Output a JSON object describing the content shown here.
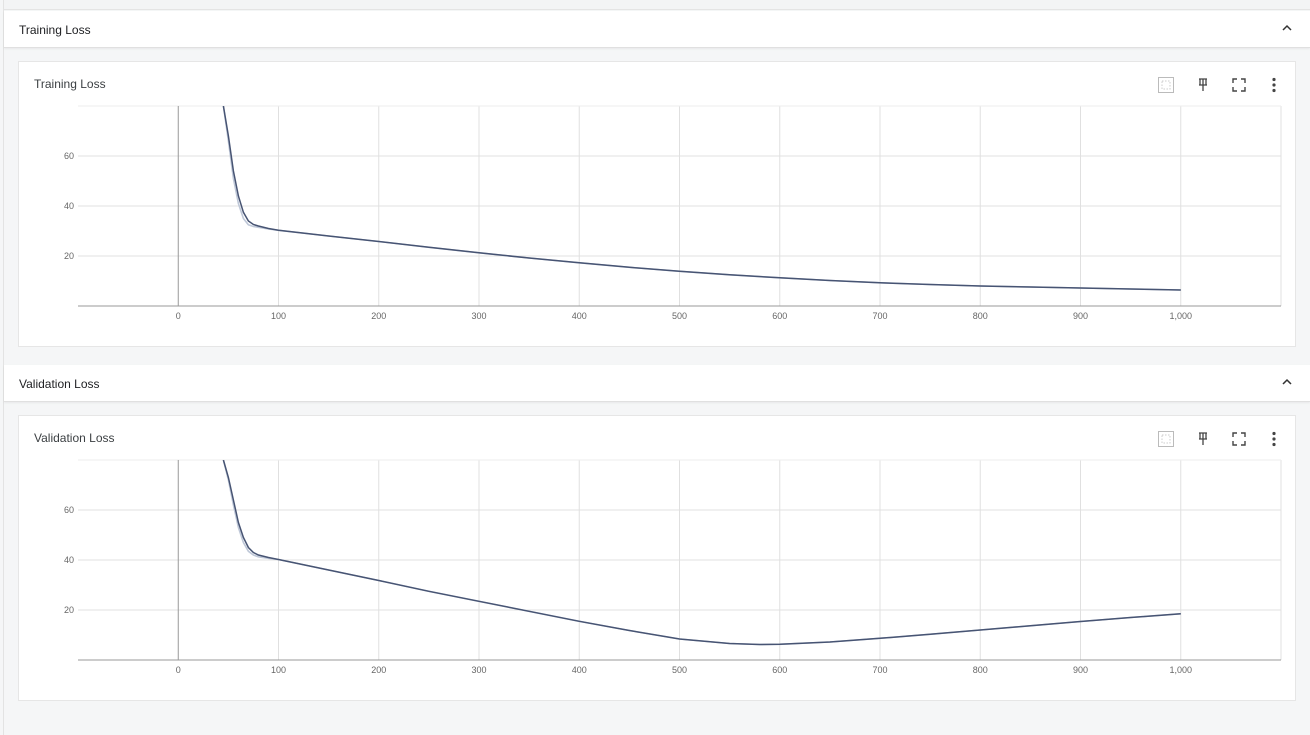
{
  "sections": [
    {
      "header_title": "Training Loss",
      "card_title": "Training Loss",
      "toolbar": [
        "fit-domain-icon",
        "pin-icon",
        "fullscreen-icon",
        "more-vert-icon"
      ],
      "chart_data": {
        "type": "line",
        "title": "Training Loss",
        "xlabel": "",
        "ylabel": "",
        "xlim": [
          -100,
          1100
        ],
        "ylim": [
          0,
          80
        ],
        "x_ticks": [
          0,
          100,
          200,
          300,
          400,
          500,
          600,
          700,
          800,
          900,
          1000
        ],
        "x_tick_labels": [
          "0",
          "100",
          "200",
          "300",
          "400",
          "500",
          "600",
          "700",
          "800",
          "900",
          "1,000"
        ],
        "y_ticks": [
          20,
          40,
          60
        ],
        "y_tick_labels": [
          "20",
          "40",
          "60"
        ],
        "grid": true,
        "series": [
          {
            "color": "#bfc8d8",
            "x": [
              45,
              50,
              55,
              60,
              65,
              70,
              75,
              80,
              90,
              100,
              150,
              200,
              250,
              300,
              350,
              400,
              450,
              500,
              550,
              600,
              650,
              700,
              750,
              800,
              850,
              900,
              950,
              1000
            ],
            "y": [
              80,
              66,
              51,
              41,
              35,
              32.5,
              31.8,
              31.5,
              30.8,
              30.3,
              28,
              25.8,
              23.5,
              21.3,
              19.2,
              17.3,
              15.5,
              13.9,
              12.5,
              11.3,
              10.2,
              9.3,
              8.6,
              8,
              7.6,
              7.2,
              6.8,
              6.4
            ]
          },
          {
            "color": "#475473",
            "x": [
              45,
              50,
              55,
              60,
              65,
              70,
              75,
              80,
              90,
              100,
              150,
              200,
              250,
              300,
              350,
              400,
              450,
              500,
              550,
              600,
              650,
              700,
              750,
              800,
              850,
              900,
              950,
              1000
            ],
            "y": [
              80,
              68,
              54,
              44,
              37.5,
              34,
              32.6,
              32,
              31,
              30.3,
              28,
              25.8,
              23.5,
              21.3,
              19.2,
              17.3,
              15.5,
              13.9,
              12.5,
              11.3,
              10.2,
              9.3,
              8.6,
              8,
              7.6,
              7.2,
              6.8,
              6.4
            ]
          }
        ]
      }
    },
    {
      "header_title": "Validation Loss",
      "card_title": "Validation Loss",
      "toolbar": [
        "fit-domain-icon",
        "pin-icon",
        "fullscreen-icon",
        "more-vert-icon"
      ],
      "chart_data": {
        "type": "line",
        "title": "Validation Loss",
        "xlabel": "",
        "ylabel": "",
        "xlim": [
          -100,
          1100
        ],
        "ylim": [
          0,
          80
        ],
        "x_ticks": [
          0,
          100,
          200,
          300,
          400,
          500,
          600,
          700,
          800,
          900,
          1000
        ],
        "x_tick_labels": [
          "0",
          "100",
          "200",
          "300",
          "400",
          "500",
          "600",
          "700",
          "800",
          "900",
          "1,000"
        ],
        "y_ticks": [
          20,
          40,
          60
        ],
        "y_tick_labels": [
          "20",
          "40",
          "60"
        ],
        "grid": true,
        "series": [
          {
            "color": "#bfc8d8",
            "x": [
              45,
              50,
              55,
              60,
              65,
              70,
              75,
              80,
              90,
              100,
              150,
              200,
              250,
              300,
              350,
              400,
              450,
              500,
              550,
              580,
              600,
              650,
              700,
              750,
              800,
              850,
              900,
              950,
              1000
            ],
            "y": [
              80,
              72,
              62,
              53,
              47,
              43.5,
              42,
              41.3,
              40.7,
              40.2,
              36,
              31.8,
              27.5,
              23.5,
              19.5,
              15.5,
              11.8,
              8.4,
              6.6,
              6.2,
              6.3,
              7.2,
              8.7,
              10.3,
              12,
              13.7,
              15.4,
              17,
              18.5
            ]
          },
          {
            "color": "#475473",
            "x": [
              45,
              50,
              55,
              60,
              65,
              70,
              75,
              80,
              90,
              100,
              150,
              200,
              250,
              300,
              350,
              400,
              450,
              500,
              550,
              580,
              600,
              650,
              700,
              750,
              800,
              850,
              900,
              950,
              1000
            ],
            "y": [
              80,
              73,
              64,
              55,
              49,
              45,
              43,
              42,
              41,
              40.2,
              36,
              31.8,
              27.5,
              23.5,
              19.5,
              15.5,
              11.8,
              8.4,
              6.6,
              6.2,
              6.3,
              7.2,
              8.7,
              10.3,
              12,
              13.7,
              15.4,
              17,
              18.5
            ]
          }
        ]
      }
    }
  ]
}
